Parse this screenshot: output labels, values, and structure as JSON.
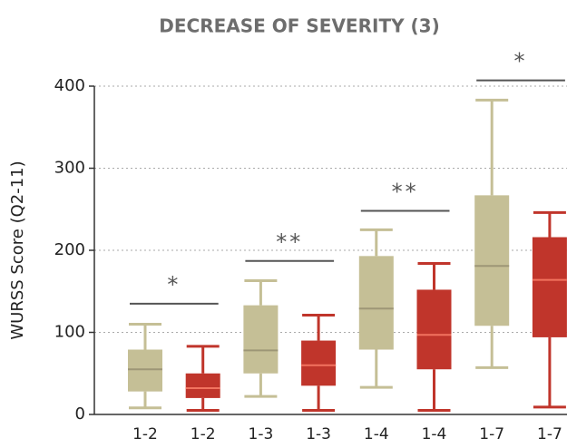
{
  "chart_data": {
    "type": "box",
    "title": "DECREASE OF SEVERITY (3)",
    "y_label": "WURSS Score (Q2-11)",
    "categories": [
      "1-2",
      "1-2",
      "1-3",
      "1-3",
      "1-4",
      "1-4",
      "1-7",
      "1-7"
    ],
    "boxes": [
      {
        "color": "#c5bf96",
        "min": 8,
        "q1": 28,
        "median": 55,
        "q3": 79,
        "max": 110
      },
      {
        "color": "#c0352b",
        "min": 5,
        "q1": 20,
        "median": 32,
        "q3": 50,
        "max": 83
      },
      {
        "color": "#c5bf96",
        "min": 22,
        "q1": 50,
        "median": 78,
        "q3": 133,
        "max": 163
      },
      {
        "color": "#c0352b",
        "min": 5,
        "q1": 35,
        "median": 60,
        "q3": 90,
        "max": 121
      },
      {
        "color": "#c5bf96",
        "min": 33,
        "q1": 79,
        "median": 129,
        "q3": 193,
        "max": 225
      },
      {
        "color": "#c0352b",
        "min": 5,
        "q1": 55,
        "median": 97,
        "q3": 152,
        "max": 184
      },
      {
        "color": "#c5bf96",
        "min": 57,
        "q1": 108,
        "median": 181,
        "q3": 267,
        "max": 383
      },
      {
        "color": "#c0352b",
        "min": 9,
        "q1": 94,
        "median": 164,
        "q3": 216,
        "max": 246
      }
    ],
    "annotations": [
      {
        "text": "*",
        "y": 135
      },
      {
        "text": "**",
        "y": 187
      },
      {
        "text": "**",
        "y": 248
      },
      {
        "text": "*",
        "y": 407
      }
    ],
    "ylim": [
      0,
      400
    ],
    "yticks": [
      0,
      100,
      200,
      300,
      400
    ],
    "grid": true
  }
}
